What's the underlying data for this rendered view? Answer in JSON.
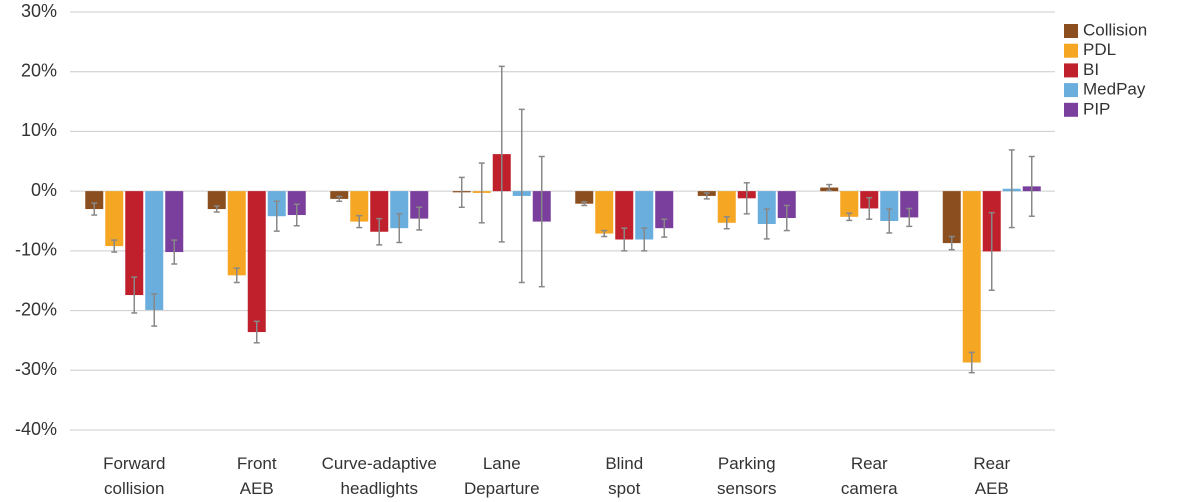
{
  "chart_data": {
    "type": "bar",
    "categories": [
      "Forward\ncollision",
      "Front\nAEB",
      "Curve-adaptive\nheadlights",
      "Lane\nDeparture",
      "Blind\nspot",
      "Parking\nsensors",
      "Rear\ncamera",
      "Rear\nAEB"
    ],
    "series": [
      {
        "name": "Collision",
        "color": "#8b4e1f",
        "values": [
          -3.0,
          -3.0,
          -1.3,
          -0.2,
          -2.1,
          -0.8,
          0.6,
          -8.7
        ],
        "errors": [
          1.0,
          0.5,
          0.4,
          2.5,
          0.3,
          0.5,
          0.5,
          1.1
        ]
      },
      {
        "name": "PDL",
        "color": "#f5a623",
        "values": [
          -9.2,
          -14.1,
          -5.1,
          -0.3,
          -7.1,
          -5.3,
          -4.3,
          -28.7
        ],
        "errors": [
          1.0,
          1.2,
          1.0,
          5.0,
          0.5,
          1.0,
          0.6,
          1.7
        ]
      },
      {
        "name": "BI",
        "color": "#c0202b",
        "values": [
          -17.4,
          -23.6,
          -6.8,
          6.2,
          -8.1,
          -1.2,
          -2.9,
          -10.1
        ],
        "errors": [
          3.0,
          1.8,
          2.2,
          14.7,
          1.9,
          2.6,
          1.8,
          6.5
        ]
      },
      {
        "name": "MedPay",
        "color": "#6aaedd",
        "values": [
          -19.9,
          -4.2,
          -6.2,
          -0.8,
          -8.1,
          -5.5,
          -5.0,
          0.4
        ],
        "errors": [
          2.7,
          2.5,
          2.4,
          14.5,
          1.9,
          2.5,
          2.0,
          6.5
        ]
      },
      {
        "name": "PIP",
        "color": "#7a3e9c",
        "values": [
          -10.2,
          -4.0,
          -4.6,
          -5.1,
          -6.2,
          -4.5,
          -4.4,
          0.8
        ],
        "errors": [
          2.0,
          1.8,
          1.9,
          10.9,
          1.5,
          2.1,
          1.5,
          5.0
        ]
      }
    ],
    "ylim": [
      -40,
      30
    ],
    "yticks": [
      {
        "value": -40,
        "label": "-40%"
      },
      {
        "value": -30,
        "label": "-30%"
      },
      {
        "value": -20,
        "label": "-20%"
      },
      {
        "value": -10,
        "label": "-10%"
      },
      {
        "value": 0,
        "label": "0%"
      },
      {
        "value": 10,
        "label": "10%"
      },
      {
        "value": 20,
        "label": "20%"
      },
      {
        "value": 30,
        "label": "30%"
      }
    ],
    "grid": true,
    "legend": "right"
  }
}
